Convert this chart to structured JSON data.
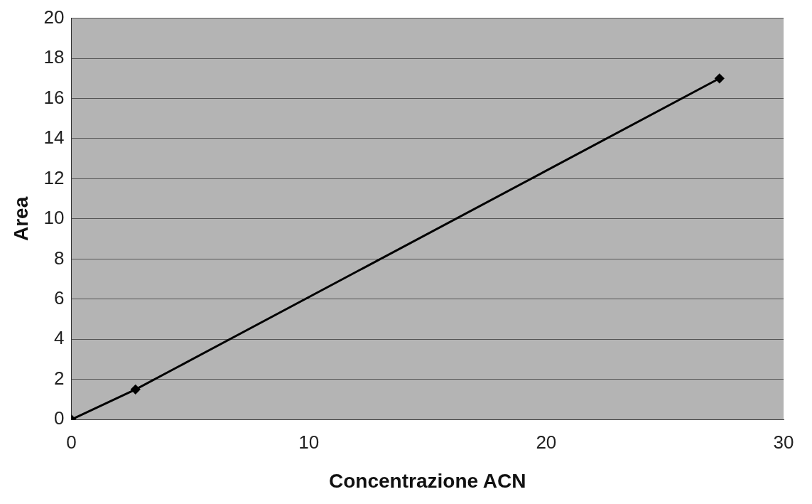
{
  "chart_data": {
    "type": "line",
    "xlabel": "Concentrazione ACN",
    "ylabel": "Area",
    "x": [
      0,
      2.7,
      27.3
    ],
    "series": [
      {
        "color": "#000000",
        "values": [
          0,
          1.5,
          17
        ]
      }
    ],
    "xlim": [
      0,
      30
    ],
    "xticks": [
      0,
      10,
      20,
      30
    ],
    "ylim": [
      0,
      20
    ],
    "yticks": [
      0,
      2,
      4,
      6,
      8,
      10,
      12,
      14,
      16,
      18,
      20
    ],
    "grid": "y",
    "legend": false,
    "marker": "diamond",
    "line_style": "solid"
  }
}
